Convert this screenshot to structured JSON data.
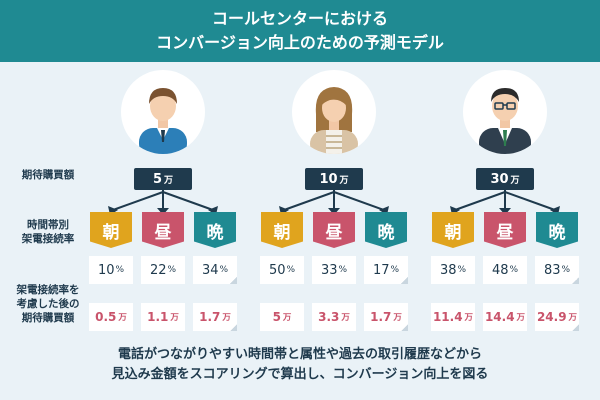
{
  "title": {
    "line1": "コールセンターにおける",
    "line2": "コンバージョン向上のための予測モデル"
  },
  "row_labels": {
    "expected_purchase": "期待購買額",
    "time_rate_line1": "時間帯別",
    "time_rate_line2": "架電接続率",
    "adjusted_line1": "架電接続率を",
    "adjusted_line2": "考慮した後の",
    "adjusted_line3": "期待購買額"
  },
  "time_labels": [
    "朝",
    "昼",
    "晩"
  ],
  "customers": [
    {
      "avatar": "young-man-avatar",
      "amount": "5",
      "unit": "万",
      "rates": [
        "10",
        "22",
        "34"
      ],
      "rate_unit": "%",
      "expected": [
        "0.5",
        "1.1",
        "1.7"
      ],
      "expected_unit": "万"
    },
    {
      "avatar": "woman-avatar",
      "amount": "10",
      "unit": "万",
      "rates": [
        "50",
        "33",
        "17"
      ],
      "rate_unit": "%",
      "expected": [
        "5",
        "3.3",
        "1.7"
      ],
      "expected_unit": "万"
    },
    {
      "avatar": "businessman-glasses-avatar",
      "amount": "30",
      "unit": "万",
      "rates": [
        "38",
        "48",
        "83"
      ],
      "rate_unit": "%",
      "expected": [
        "11.4",
        "14.4",
        "24.9"
      ],
      "expected_unit": "万"
    }
  ],
  "footer": {
    "line1": "電話がつながりやすい時間帯と属性や過去の取引履歴などから",
    "line2": "見込み金額をスコアリングで算出し、コンバージョン向上を図る"
  },
  "colors": {
    "title_band": "#1f8a92",
    "morning": "#e0a41e",
    "noon": "#c9546b",
    "night": "#1f8a92",
    "navy": "#1f3a4d",
    "background": "#eaf2f7"
  }
}
